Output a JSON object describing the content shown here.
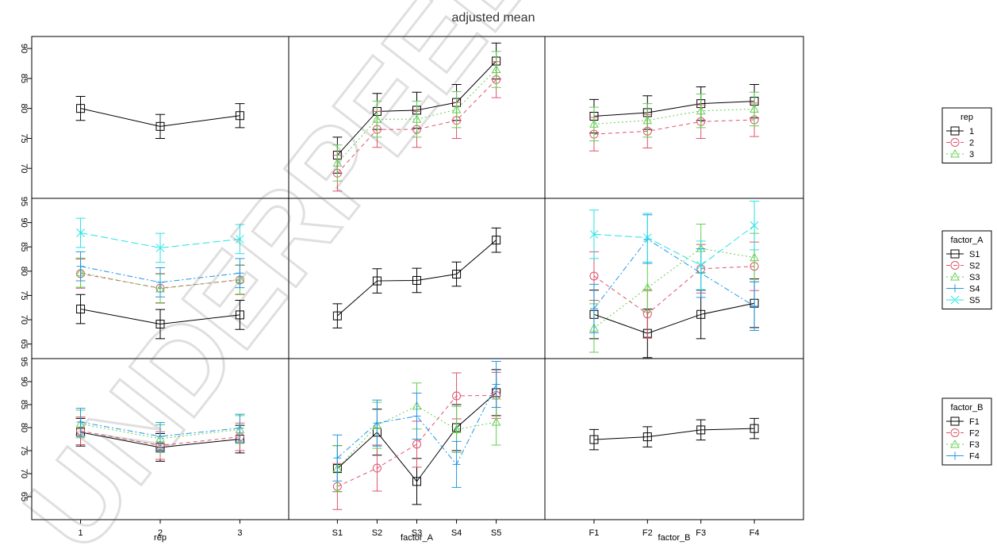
{
  "chart_data": {
    "type": "line",
    "title": "adjusted mean",
    "columns": [
      {
        "factor": "rep",
        "xlabel": "rep",
        "levels": [
          "1",
          "2",
          "3"
        ]
      },
      {
        "factor": "factor_A",
        "xlabel": "factor_A",
        "levels": [
          "S1",
          "S2",
          "S3",
          "S4",
          "S5"
        ]
      },
      {
        "factor": "factor_B",
        "xlabel": "factor_B",
        "levels": [
          "F1",
          "F2",
          "F3",
          "F4"
        ]
      }
    ],
    "row_y_ticks": [
      [
        "70",
        "75",
        "80",
        "85",
        "90"
      ],
      [
        "65",
        "70",
        "75",
        "80",
        "85",
        "90"
      ],
      [
        "65",
        "70",
        "75",
        "80",
        "85",
        "90"
      ]
    ],
    "row_axis_top_labels": [
      "95",
      "95"
    ],
    "rows": [
      {
        "factor": "rep",
        "ylim": [
          65,
          92
        ],
        "panels": [
          {
            "series": [
              {
                "level": "1",
                "values": [
                  80,
                  77,
                  78.8
                ],
                "err": [
                  2,
                  2,
                  2
                ]
              }
            ]
          },
          {
            "series": [
              {
                "level": "1",
                "values": [
                  72.2,
                  79.5,
                  79.7,
                  81,
                  87.9
                ],
                "err": [
                  3,
                  3,
                  3,
                  3,
                  3
                ]
              },
              {
                "level": "2",
                "values": [
                  69.2,
                  76.5,
                  76.5,
                  78,
                  84.8
                ],
                "err": [
                  3,
                  3,
                  3,
                  3,
                  3
                ]
              },
              {
                "level": "3",
                "values": [
                  70.9,
                  78.2,
                  78.2,
                  79.8,
                  86.5
                ],
                "err": [
                  3,
                  3,
                  3,
                  3,
                  3
                ]
              }
            ]
          },
          {
            "series": [
              {
                "level": "1",
                "values": [
                  78.7,
                  79.3,
                  80.8,
                  81.2
                ],
                "err": [
                  2.8,
                  2.8,
                  2.8,
                  2.8
                ]
              },
              {
                "level": "2",
                "values": [
                  75.7,
                  76.2,
                  77.8,
                  78.1
                ],
                "err": [
                  2.8,
                  2.8,
                  2.8,
                  2.8
                ]
              },
              {
                "level": "3",
                "values": [
                  77.4,
                  78,
                  79.6,
                  79.9
                ],
                "err": [
                  2.8,
                  2.8,
                  2.8,
                  2.8
                ]
              }
            ]
          }
        ]
      },
      {
        "factor": "factor_A",
        "ylim": [
          62,
          95
        ],
        "panels": [
          {
            "series": [
              {
                "level": "S1",
                "values": [
                  72.2,
                  69.1,
                  71
                ],
                "err": [
                  3,
                  3,
                  3
                ]
              },
              {
                "level": "S2",
                "values": [
                  79.5,
                  76.5,
                  78.2
                ],
                "err": [
                  3,
                  3,
                  3
                ]
              },
              {
                "level": "S3",
                "values": [
                  79.7,
                  76.4,
                  78.3
                ],
                "err": [
                  3,
                  3,
                  3
                ]
              },
              {
                "level": "S4",
                "values": [
                  81,
                  77.7,
                  79.6
                ],
                "err": [
                  3,
                  3,
                  3
                ]
              },
              {
                "level": "S5",
                "values": [
                  87.9,
                  84.8,
                  86.6
                ],
                "err": [
                  3,
                  3,
                  3
                ]
              }
            ]
          },
          {
            "series": [
              {
                "level": "S1",
                "values": [
                  70.8,
                  78,
                  78.1,
                  79.4,
                  86.4
                ],
                "err": [
                  2.5,
                  2.5,
                  2.5,
                  2.5,
                  2.5
                ]
              }
            ]
          },
          {
            "series": [
              {
                "level": "S1",
                "values": [
                  71.1,
                  67.2,
                  71.1,
                  73.4
                ],
                "err": [
                  5,
                  5,
                  5,
                  5
                ]
              },
              {
                "level": "S2",
                "values": [
                  79,
                  71.2,
                  80.5,
                  81
                ],
                "err": [
                  5,
                  5,
                  5,
                  5
                ]
              },
              {
                "level": "S3",
                "values": [
                  68.3,
                  76.6,
                  84.7,
                  82.8
                ],
                "err": [
                  5,
                  5,
                  5,
                  5
                ]
              },
              {
                "level": "S4",
                "values": [
                  72.3,
                  86.6,
                  79.6,
                  72.8
                ],
                "err": [
                  5,
                  5,
                  5,
                  5
                ]
              },
              {
                "level": "S5",
                "values": [
                  87.6,
                  86.9,
                  81.2,
                  89.4
                ],
                "err": [
                  5,
                  5,
                  5,
                  5
                ]
              }
            ]
          }
        ]
      },
      {
        "factor": "factor_B",
        "ylim": [
          60,
          95
        ],
        "panels": [
          {
            "series": [
              {
                "level": "F1",
                "values": [
                  79,
                  75.7,
                  77.5
                ],
                "err": [
                  3,
                  3,
                  3
                ]
              },
              {
                "level": "F2",
                "values": [
                  79.3,
                  76.1,
                  78
                ],
                "err": [
                  3,
                  3,
                  3
                ]
              },
              {
                "level": "F3",
                "values": [
                  80.8,
                  77.6,
                  79.6
                ],
                "err": [
                  3,
                  3,
                  3
                ]
              },
              {
                "level": "F4",
                "values": [
                  81.2,
                  78.1,
                  79.9
                ],
                "err": [
                  3,
                  3,
                  3
                ]
              }
            ]
          },
          {
            "series": [
              {
                "level": "F1",
                "values": [
                  71.1,
                  79,
                  68.3,
                  80,
                  87.6
                ],
                "err": [
                  5,
                  5,
                  5,
                  5,
                  5
                ]
              },
              {
                "level": "F2",
                "values": [
                  67.2,
                  71.2,
                  76.4,
                  86.9,
                  87
                ],
                "err": [
                  5,
                  5,
                  5,
                  5,
                  5
                ]
              },
              {
                "level": "F3",
                "values": [
                  71.1,
                  80.5,
                  84.7,
                  79.6,
                  81.2
                ],
                "err": [
                  5,
                  5,
                  5,
                  5,
                  5
                ]
              },
              {
                "level": "F4",
                "values": [
                  73.4,
                  81,
                  82.5,
                  72,
                  89.4
                ],
                "err": [
                  5,
                  5,
                  5,
                  5,
                  5
                ]
              }
            ]
          },
          {
            "series": [
              {
                "level": "F1",
                "values": [
                  77.4,
                  78,
                  79.5,
                  79.8
                ],
                "err": [
                  2.2,
                  2.2,
                  2.2,
                  2.2
                ]
              }
            ]
          }
        ]
      }
    ],
    "legends": [
      {
        "title": "rep",
        "placement": "right",
        "entries": [
          "1",
          "2",
          "3"
        ]
      },
      {
        "title": "factor_A",
        "placement": "right",
        "entries": [
          "S1",
          "S2",
          "S3",
          "S4",
          "S5"
        ]
      },
      {
        "title": "factor_B",
        "placement": "right",
        "entries": [
          "F1",
          "F2",
          "F3",
          "F4"
        ]
      }
    ],
    "series_colors": [
      "#000000",
      "#DF536B",
      "#61D04F",
      "#2297E6",
      "#28E2E5"
    ],
    "series_symbols": [
      "square",
      "circle",
      "triangle",
      "plus",
      "cross"
    ],
    "grid": false
  },
  "watermark": "UNDERPEEL"
}
